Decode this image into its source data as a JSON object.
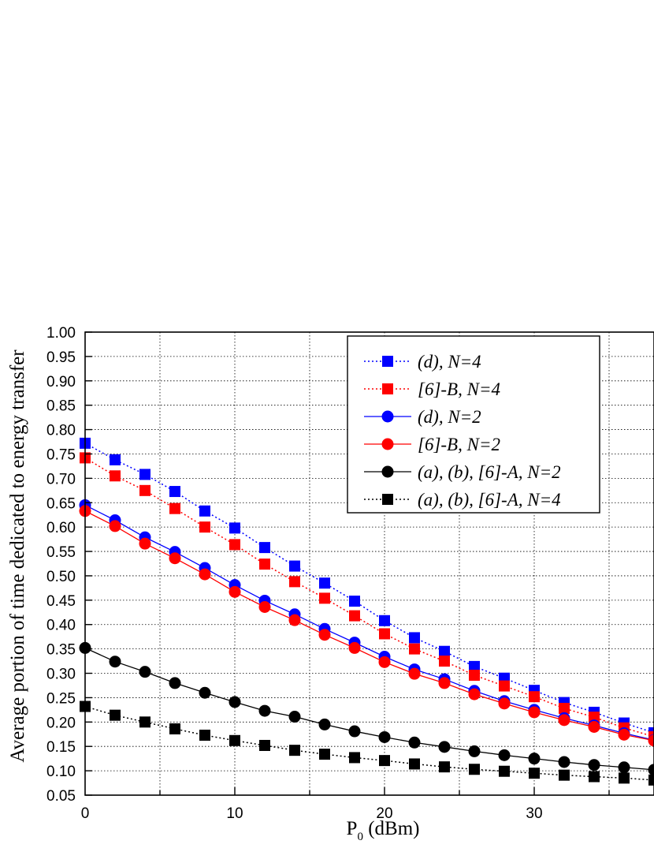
{
  "chart_data": {
    "type": "line",
    "xlabel_main": "P",
    "xlabel_sub": "0",
    "xlabel_rest": " (dBm)",
    "ylabel": "Average portion of time dedicated to energy transfer",
    "xlim": [
      0,
      38
    ],
    "ylim": [
      0.05,
      1.0
    ],
    "x_ticks": [
      0,
      10,
      20,
      30
    ],
    "x_tick_labels": [
      "0",
      "10",
      "20",
      "30"
    ],
    "y_ticks": [
      1.0,
      0.95,
      0.9,
      0.85,
      0.8,
      0.75,
      0.7,
      0.65,
      0.6,
      0.55,
      0.5,
      0.45,
      0.4,
      0.35,
      0.3,
      0.25,
      0.2,
      0.15,
      0.1,
      0.05
    ],
    "y_tick_labels": [
      "1.00",
      "0.95",
      "0.90",
      "0.85",
      "0.80",
      "0.75",
      "0.70",
      "0.65",
      "0.60",
      "0.55",
      "0.50",
      "0.45",
      "0.40",
      "0.35",
      "0.30",
      "0.25",
      "0.20",
      "0.15",
      "0.10",
      "0.05"
    ],
    "grid": true,
    "legend_position": "top-right",
    "x": [
      0,
      2,
      4,
      6,
      8,
      10,
      12,
      14,
      16,
      18,
      20,
      22,
      24,
      26,
      28,
      30,
      32,
      34,
      36,
      38
    ],
    "series": [
      {
        "name": "(d), N=4",
        "color": "#0000ff",
        "marker": "square",
        "line": "dotted",
        "values": [
          0.772,
          0.738,
          0.708,
          0.673,
          0.633,
          0.598,
          0.558,
          0.52,
          0.485,
          0.448,
          0.408,
          0.373,
          0.345,
          0.314,
          0.29,
          0.265,
          0.24,
          0.22,
          0.198,
          0.178
        ]
      },
      {
        "name": "[6]-B, N=4",
        "color": "#ff0000",
        "marker": "square",
        "line": "dotted",
        "values": [
          0.742,
          0.705,
          0.675,
          0.638,
          0.6,
          0.564,
          0.524,
          0.488,
          0.454,
          0.418,
          0.381,
          0.35,
          0.325,
          0.296,
          0.274,
          0.252,
          0.228,
          0.21,
          0.188,
          0.17
        ]
      },
      {
        "name": "(d), N=2",
        "color": "#0000ff",
        "marker": "circle",
        "line": "solid",
        "values": [
          0.645,
          0.614,
          0.579,
          0.549,
          0.516,
          0.481,
          0.449,
          0.421,
          0.391,
          0.363,
          0.334,
          0.308,
          0.288,
          0.264,
          0.243,
          0.225,
          0.208,
          0.193,
          0.177,
          0.163
        ]
      },
      {
        "name": "[6]-B, N=2",
        "color": "#ff0000",
        "marker": "circle",
        "line": "solid",
        "values": [
          0.633,
          0.602,
          0.566,
          0.536,
          0.503,
          0.467,
          0.436,
          0.409,
          0.379,
          0.352,
          0.323,
          0.299,
          0.28,
          0.257,
          0.238,
          0.22,
          0.204,
          0.19,
          0.174,
          0.162
        ]
      },
      {
        "name": "(a), (b), [6]-A, N=2",
        "color": "#000000",
        "marker": "circle",
        "line": "solid",
        "values": [
          0.352,
          0.324,
          0.303,
          0.28,
          0.26,
          0.241,
          0.223,
          0.211,
          0.195,
          0.181,
          0.169,
          0.158,
          0.149,
          0.14,
          0.132,
          0.125,
          0.118,
          0.112,
          0.107,
          0.102
        ]
      },
      {
        "name": "(a), (b), [6]-A, N=4",
        "color": "#000000",
        "marker": "square",
        "line": "dotted",
        "values": [
          0.232,
          0.214,
          0.2,
          0.186,
          0.173,
          0.162,
          0.152,
          0.142,
          0.134,
          0.127,
          0.121,
          0.114,
          0.108,
          0.103,
          0.099,
          0.095,
          0.091,
          0.088,
          0.085,
          0.081
        ]
      }
    ]
  }
}
